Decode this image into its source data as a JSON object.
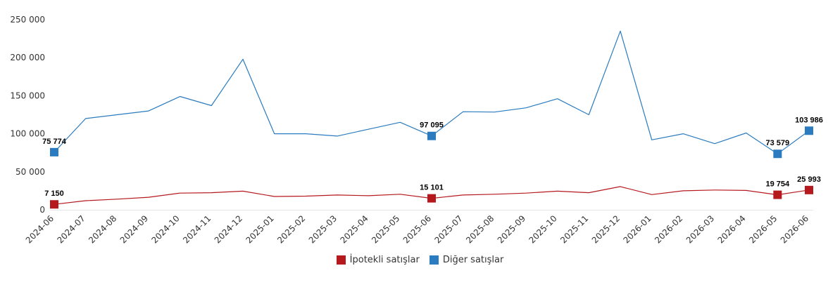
{
  "chart_data": {
    "type": "line",
    "x": [
      "2024-06",
      "2024-07",
      "2024-08",
      "2024-09",
      "2024-10",
      "2024-11",
      "2024-12",
      "2025-01",
      "2025-02",
      "2025-03",
      "2025-04",
      "2025-05",
      "2025-06",
      "2025-07",
      "2025-08",
      "2025-09",
      "2025-10",
      "2025-11",
      "2025-12",
      "2026-01",
      "2026-02",
      "2026-03",
      "2026-04",
      "2026-05",
      "2026-06"
    ],
    "ylim": [
      0,
      250000
    ],
    "yticks": [
      0,
      50000,
      100000,
      150000,
      200000,
      250000
    ],
    "ytick_labels": [
      "0",
      "50 000",
      "100 000",
      "150 000",
      "200 000",
      "250 000"
    ],
    "grid": "vertical-none",
    "legend_position": "bottom-center",
    "series": [
      {
        "name": "İpotekli satışlar",
        "color": "#b5191e",
        "values": [
          7150,
          12000,
          14000,
          16500,
          22000,
          22500,
          24500,
          17500,
          18000,
          19500,
          18500,
          20500,
          15101,
          19500,
          20500,
          22000,
          24500,
          22500,
          30500,
          20000,
          25000,
          26000,
          25500,
          19754,
          25993
        ],
        "marked": [
          {
            "index": 0,
            "label": "7 150"
          },
          {
            "index": 12,
            "label": "15 101"
          },
          {
            "index": 23,
            "label": "19 754"
          },
          {
            "index": 24,
            "label": "25 993"
          }
        ]
      },
      {
        "name": "Diğer satışlar",
        "color": "#2a7bbf",
        "values": [
          75774,
          120000,
          125000,
          130000,
          149000,
          137000,
          198000,
          100000,
          100000,
          97000,
          106000,
          115000,
          97095,
          129000,
          128500,
          134000,
          146000,
          125000,
          235000,
          92000,
          100000,
          87000,
          101000,
          73579,
          103986
        ],
        "marked": [
          {
            "index": 0,
            "label": "75 774"
          },
          {
            "index": 12,
            "label": "97 095"
          },
          {
            "index": 23,
            "label": "73 579"
          },
          {
            "index": 24,
            "label": "103 986"
          }
        ]
      }
    ]
  }
}
